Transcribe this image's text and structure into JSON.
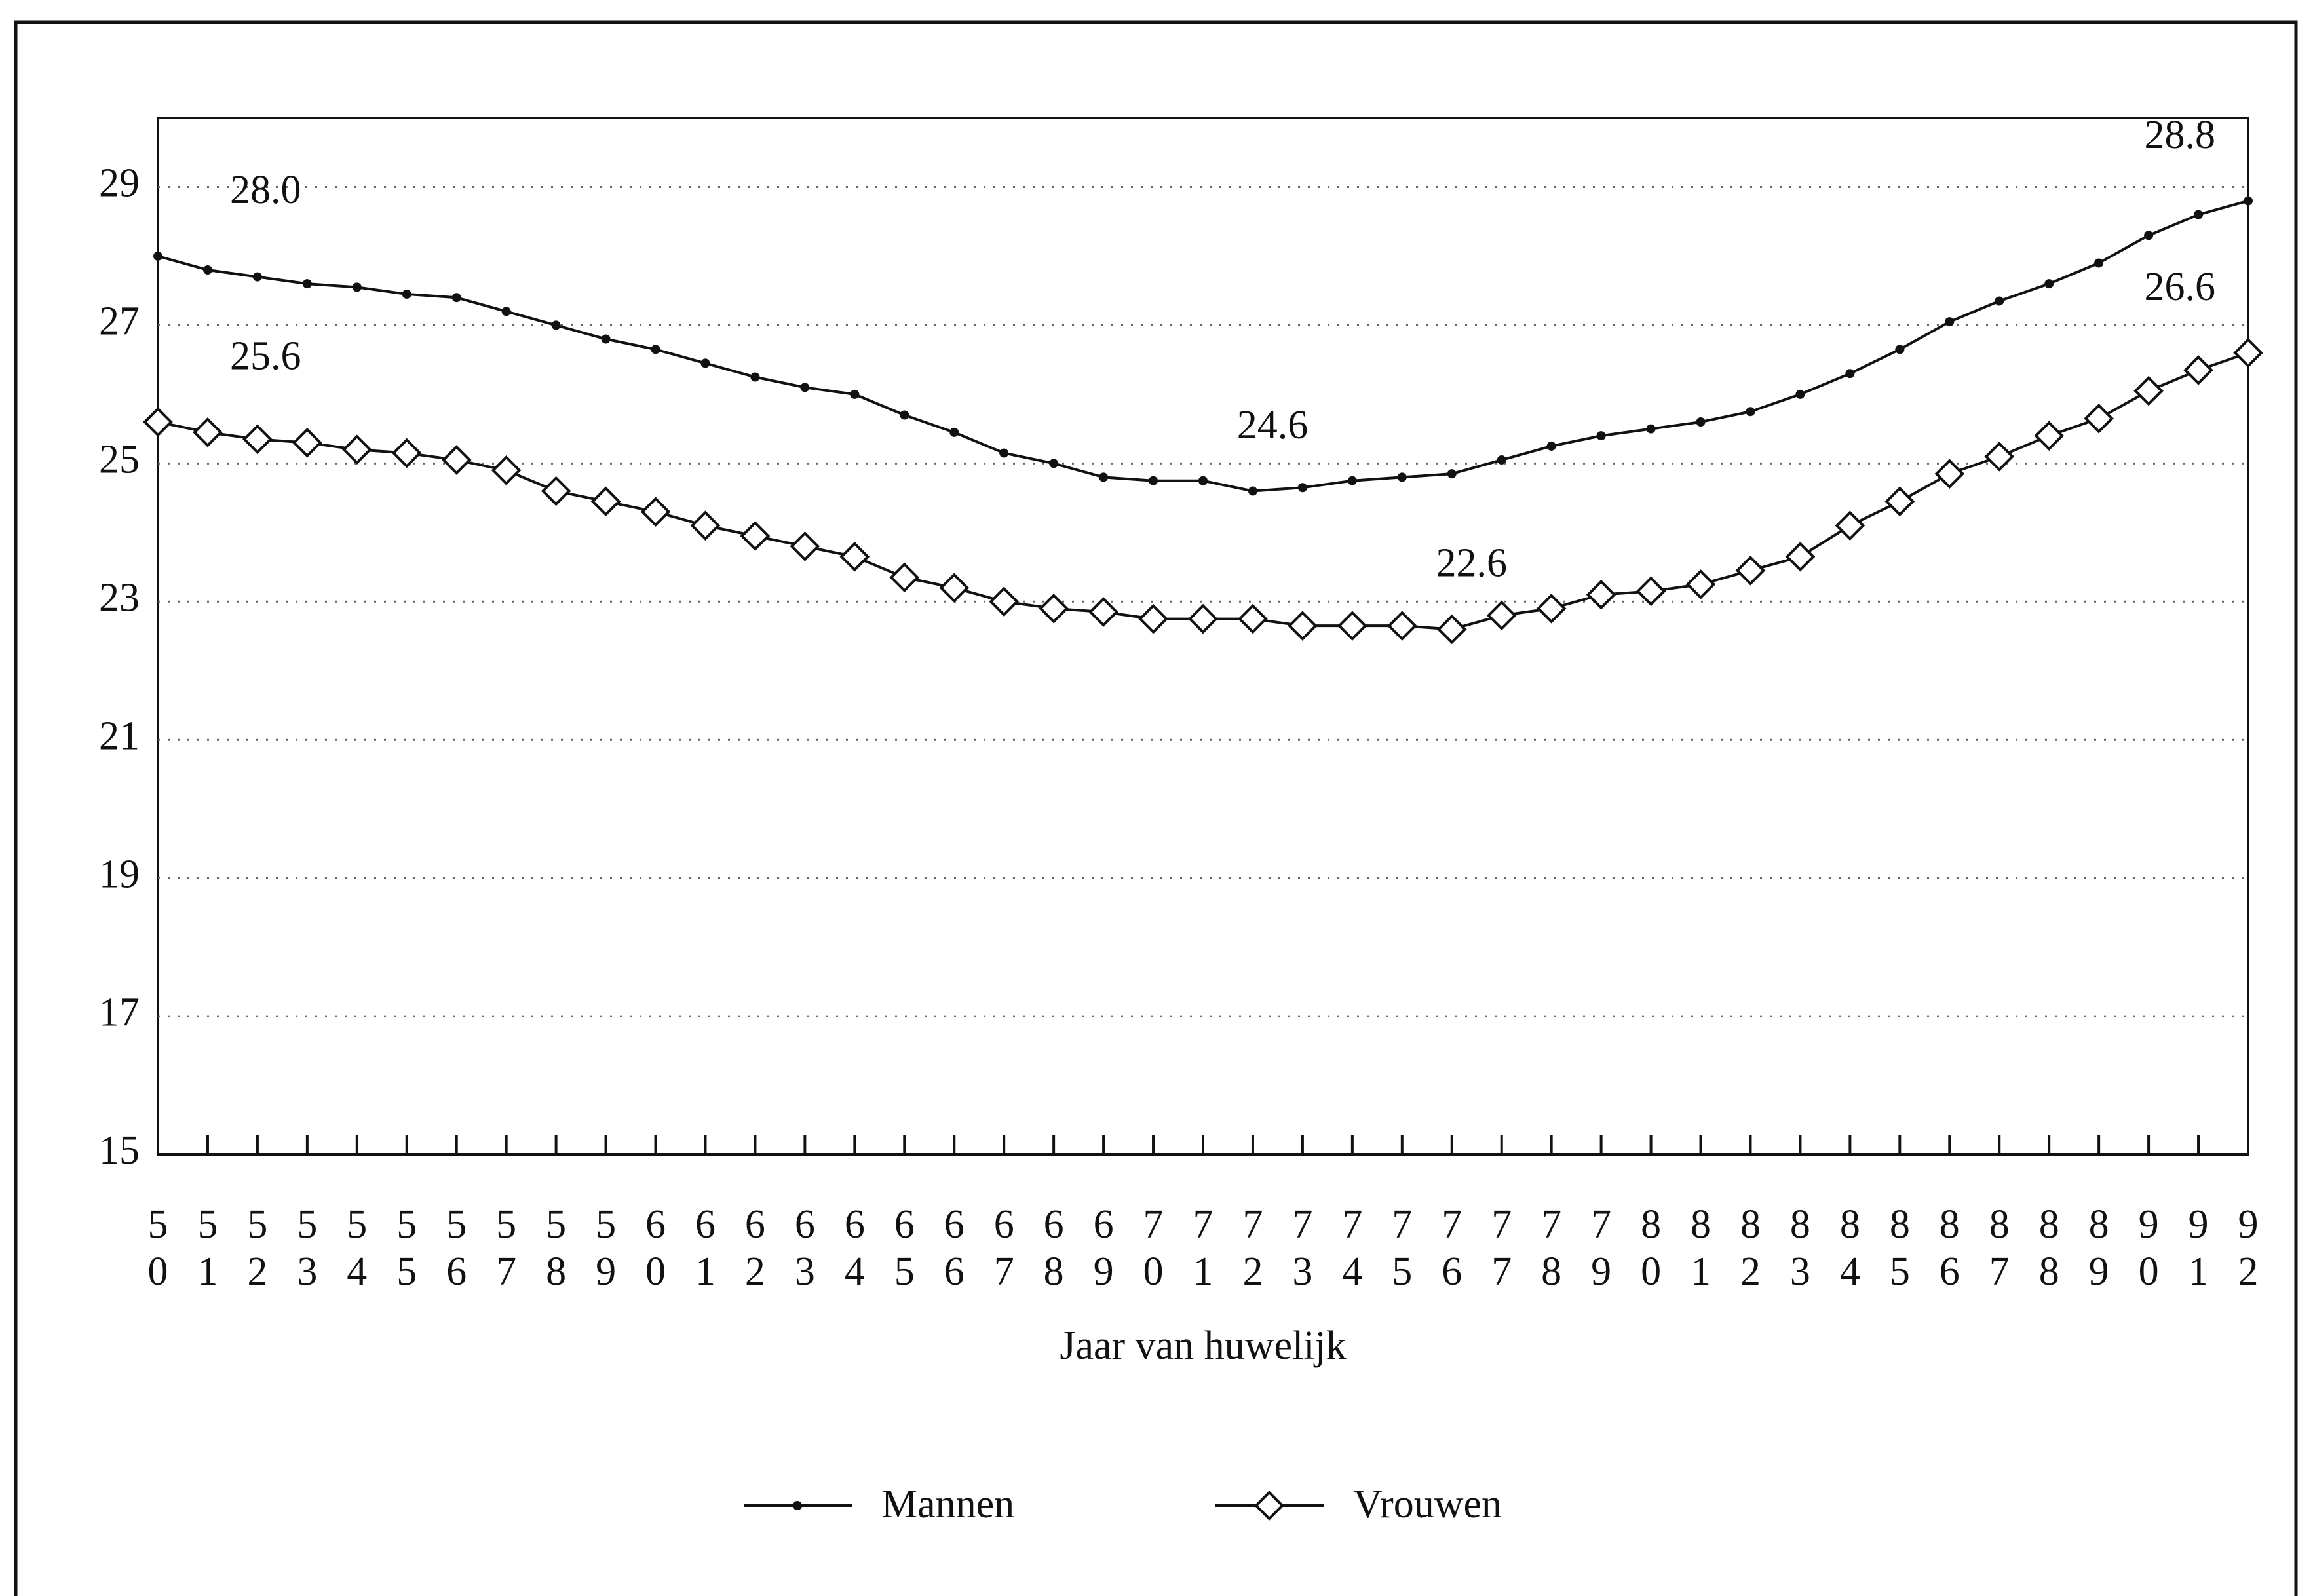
{
  "chart_data": {
    "type": "line",
    "x_label": "Jaar van huwelijk",
    "categories": [
      "50",
      "51",
      "52",
      "53",
      "54",
      "55",
      "56",
      "57",
      "58",
      "59",
      "60",
      "61",
      "62",
      "63",
      "64",
      "65",
      "66",
      "67",
      "68",
      "69",
      "70",
      "71",
      "72",
      "73",
      "74",
      "75",
      "76",
      "77",
      "78",
      "79",
      "80",
      "81",
      "82",
      "83",
      "84",
      "85",
      "86",
      "87",
      "88",
      "89",
      "90",
      "91",
      "92"
    ],
    "ylim": [
      15,
      30
    ],
    "yticks": [
      15,
      17,
      19,
      21,
      23,
      25,
      27,
      29
    ],
    "grid": true,
    "legend": "bottom",
    "series": [
      {
        "name": "Mannen",
        "color": "#111111",
        "marker": "dot",
        "values": [
          28.0,
          27.8,
          27.7,
          27.6,
          27.55,
          27.45,
          27.4,
          27.2,
          27.0,
          26.8,
          26.65,
          26.45,
          26.25,
          26.1,
          26.0,
          25.7,
          25.45,
          25.15,
          25.0,
          24.8,
          24.75,
          24.75,
          24.6,
          24.65,
          24.75,
          24.8,
          24.85,
          25.05,
          25.25,
          25.4,
          25.5,
          25.6,
          25.75,
          26.0,
          26.3,
          26.65,
          27.05,
          27.35,
          27.6,
          27.9,
          28.3,
          28.6,
          28.8
        ],
        "value_labels": [
          "28.0",
          null,
          null,
          null,
          null,
          null,
          null,
          null,
          null,
          null,
          null,
          null,
          null,
          null,
          null,
          null,
          null,
          null,
          null,
          null,
          null,
          null,
          "24.6",
          null,
          null,
          null,
          null,
          null,
          null,
          null,
          null,
          null,
          null,
          null,
          null,
          null,
          null,
          null,
          null,
          null,
          null,
          null,
          "28.8"
        ]
      },
      {
        "name": "Vrouwen",
        "color": "#111111",
        "marker": "diamond",
        "values": [
          25.6,
          25.45,
          25.35,
          25.3,
          25.2,
          25.15,
          25.05,
          24.9,
          24.6,
          24.45,
          24.3,
          24.1,
          23.95,
          23.8,
          23.65,
          23.35,
          23.2,
          23.0,
          22.9,
          22.85,
          22.75,
          22.75,
          22.75,
          22.65,
          22.65,
          22.65,
          22.6,
          22.8,
          22.9,
          23.1,
          23.15,
          23.25,
          23.45,
          23.65,
          24.1,
          24.45,
          24.85,
          25.1,
          25.4,
          25.65,
          26.05,
          26.35,
          26.6
        ],
        "value_labels": [
          "25.6",
          null,
          null,
          null,
          null,
          null,
          null,
          null,
          null,
          null,
          null,
          null,
          null,
          null,
          null,
          null,
          null,
          null,
          null,
          null,
          null,
          null,
          null,
          null,
          null,
          null,
          "22.6",
          null,
          null,
          null,
          null,
          null,
          null,
          null,
          null,
          null,
          null,
          null,
          null,
          null,
          null,
          null,
          "26.6"
        ]
      }
    ]
  }
}
